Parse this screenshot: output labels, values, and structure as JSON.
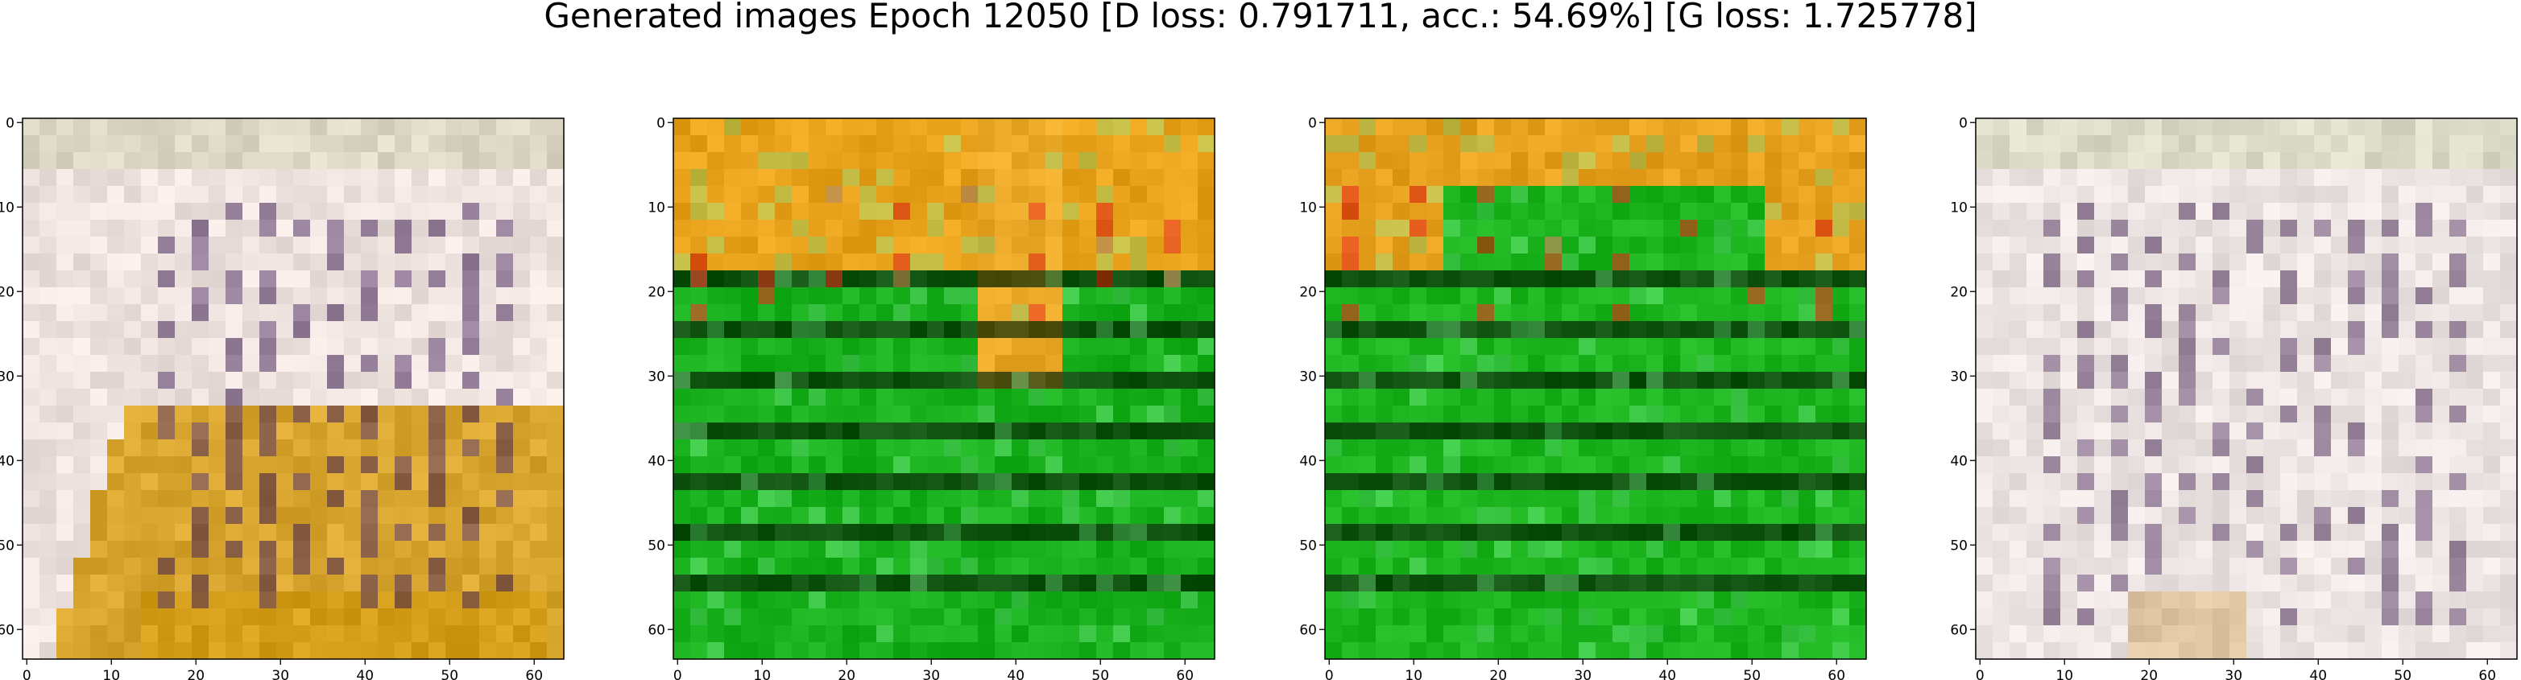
{
  "figure": {
    "title": "Generated images Epoch 12050 [D loss: 0.791711, acc.: 54.69%] [G loss: 1.725778]"
  },
  "axes_ticks": {
    "x": [
      "0",
      "10",
      "20",
      "30",
      "40",
      "50",
      "60"
    ],
    "y": [
      "0",
      "10",
      "20",
      "30",
      "40",
      "50",
      "60"
    ],
    "pixel_range": [
      0,
      63
    ]
  },
  "panels": [
    {
      "id": "panel-1",
      "palette": "pale-with-orange-band",
      "base_color": "#efe3e0",
      "accent_color": "#d49a10",
      "stripe_color": "#4a2a5a"
    },
    {
      "id": "panel-2",
      "palette": "green-with-orange-top",
      "base_color": "#19b01e",
      "accent_color": "#e8a21c",
      "stripe_color": "#0a2a08"
    },
    {
      "id": "panel-3",
      "palette": "green-with-orange-top",
      "base_color": "#1cb41f",
      "accent_color": "#e6a21e",
      "stripe_color": "#0b2a0a"
    },
    {
      "id": "panel-4",
      "palette": "pale-noisy",
      "base_color": "#ece4e2",
      "accent_color": "#d5b27a",
      "stripe_color": "#4a2a5a"
    }
  ]
}
